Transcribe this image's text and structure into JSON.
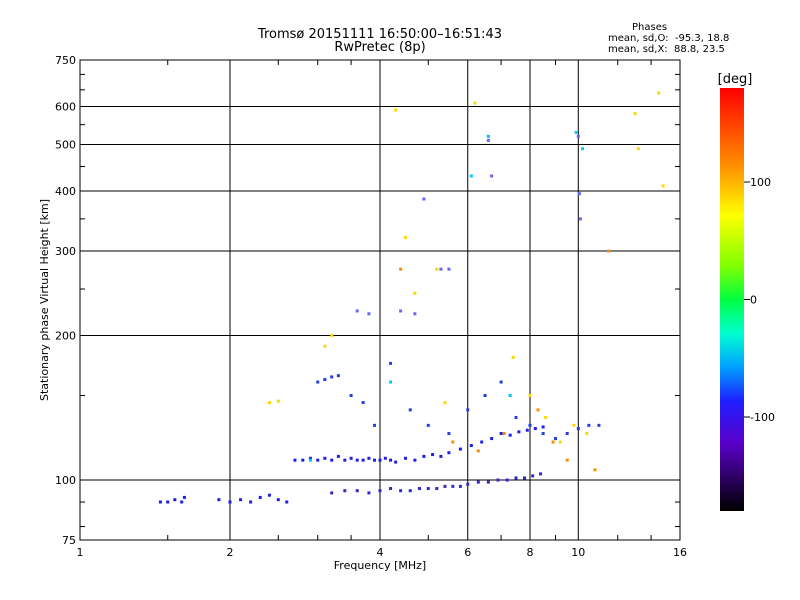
{
  "title": "Tromsø 20151111 16:50:00–16:51:43",
  "subtitle": "RwPretec (8p)",
  "stats": {
    "heading": "Phases",
    "line_o": "mean, sd,O:  -95.3, 18.8",
    "line_x": "mean, sd,X:  88.8, 23.5"
  },
  "chart_data": {
    "type": "scatter",
    "xlabel": "Frequency [MHz]",
    "ylabel": "Stationary phase Virtual Height [km]",
    "xscale": "log",
    "yscale": "log",
    "xlim": [
      1,
      16
    ],
    "ylim": [
      75,
      750
    ],
    "grid": true,
    "x_ticks": [
      1,
      2,
      4,
      6,
      8,
      10,
      16
    ],
    "y_ticks": [
      75,
      100,
      200,
      300,
      400,
      500,
      600,
      750
    ],
    "colorbar": {
      "label": "[deg]",
      "range": [
        -180,
        180
      ],
      "ticks": [
        100,
        0,
        -100
      ]
    },
    "series": [
      {
        "color": "#1e1ee6",
        "x": [
          1.45,
          1.5,
          1.55,
          1.6,
          1.62,
          1.9,
          2.0,
          2.1,
          2.2,
          2.3,
          2.4,
          2.5,
          2.6,
          2.7,
          2.8,
          2.9,
          3.0,
          3.1,
          3.2,
          3.3,
          3.4,
          3.5,
          3.6,
          3.7,
          3.8,
          3.9,
          4.0,
          4.1,
          4.2,
          4.3,
          4.5,
          4.7,
          4.9,
          5.1,
          5.3,
          5.5,
          5.8,
          6.1,
          6.4,
          6.7,
          7.0,
          7.3,
          7.6,
          7.9,
          8.2,
          8.5
        ],
        "y": [
          90,
          90,
          91,
          90,
          92,
          91,
          90,
          91,
          90,
          92,
          93,
          91,
          90,
          110,
          110,
          111,
          110,
          111,
          110,
          112,
          110,
          111,
          110,
          110,
          111,
          110,
          110,
          111,
          110,
          109,
          111,
          110,
          112,
          113,
          112,
          114,
          116,
          118,
          120,
          122,
          125,
          124,
          126,
          127,
          128,
          129
        ]
      },
      {
        "color": "#3228c8",
        "x": [
          3.2,
          3.4,
          3.6,
          3.8,
          4.0,
          4.2,
          4.4,
          4.6,
          4.8,
          5.0,
          5.2,
          5.4,
          5.6,
          5.8,
          6.0,
          6.3,
          6.6,
          6.9,
          7.2,
          7.5,
          7.8,
          8.1,
          8.4
        ],
        "y": [
          94,
          95,
          95,
          94,
          95,
          96,
          95,
          95,
          96,
          96,
          96,
          97,
          97,
          97,
          98,
          99,
          99,
          100,
          100,
          101,
          101,
          102,
          103
        ]
      },
      {
        "color": "#2040e0",
        "x": [
          3.0,
          3.1,
          3.2,
          3.3,
          3.5,
          3.7,
          3.9,
          4.2,
          4.6,
          5.0,
          5.5,
          6.0,
          6.5,
          7.0,
          7.5,
          8.0,
          8.5,
          9.0,
          9.5,
          10.0,
          10.5,
          11.0
        ],
        "y": [
          160,
          162,
          164,
          165,
          150,
          145,
          130,
          175,
          140,
          130,
          125,
          140,
          150,
          160,
          135,
          130,
          125,
          122,
          125,
          128,
          130,
          130
        ]
      },
      {
        "color": "#6464ff",
        "x": [
          3.6,
          3.8,
          4.4,
          4.7,
          4.9,
          5.3,
          5.5,
          6.6,
          6.7,
          10.0,
          10.05,
          10.1
        ],
        "y": [
          225,
          222,
          225,
          222,
          385,
          275,
          275,
          510,
          430,
          520,
          395,
          350
        ]
      },
      {
        "color": "#ffd700",
        "x": [
          2.4,
          2.5,
          3.1,
          3.2,
          4.3,
          4.5,
          4.7,
          5.2,
          5.4,
          6.2,
          7.4,
          8.0,
          8.6,
          9.2,
          9.8,
          10.4,
          13.0,
          13.2,
          14.5,
          14.8
        ],
        "y": [
          145,
          146,
          190,
          200,
          590,
          320,
          245,
          275,
          145,
          610,
          180,
          150,
          135,
          120,
          130,
          125,
          580,
          490,
          640,
          410
        ]
      },
      {
        "color": "#ff8c00",
        "x": [
          4.4,
          5.6,
          6.3,
          7.1,
          8.3,
          8.9,
          9.5,
          10.8,
          11.5
        ],
        "y": [
          275,
          120,
          115,
          125,
          140,
          120,
          110,
          105,
          300
        ]
      },
      {
        "color": "#00c8ff",
        "x": [
          2.9,
          4.2,
          6.1,
          6.6,
          7.3,
          9.9,
          10.2
        ],
        "y": [
          110,
          160,
          430,
          520,
          150,
          530,
          490
        ]
      }
    ]
  }
}
